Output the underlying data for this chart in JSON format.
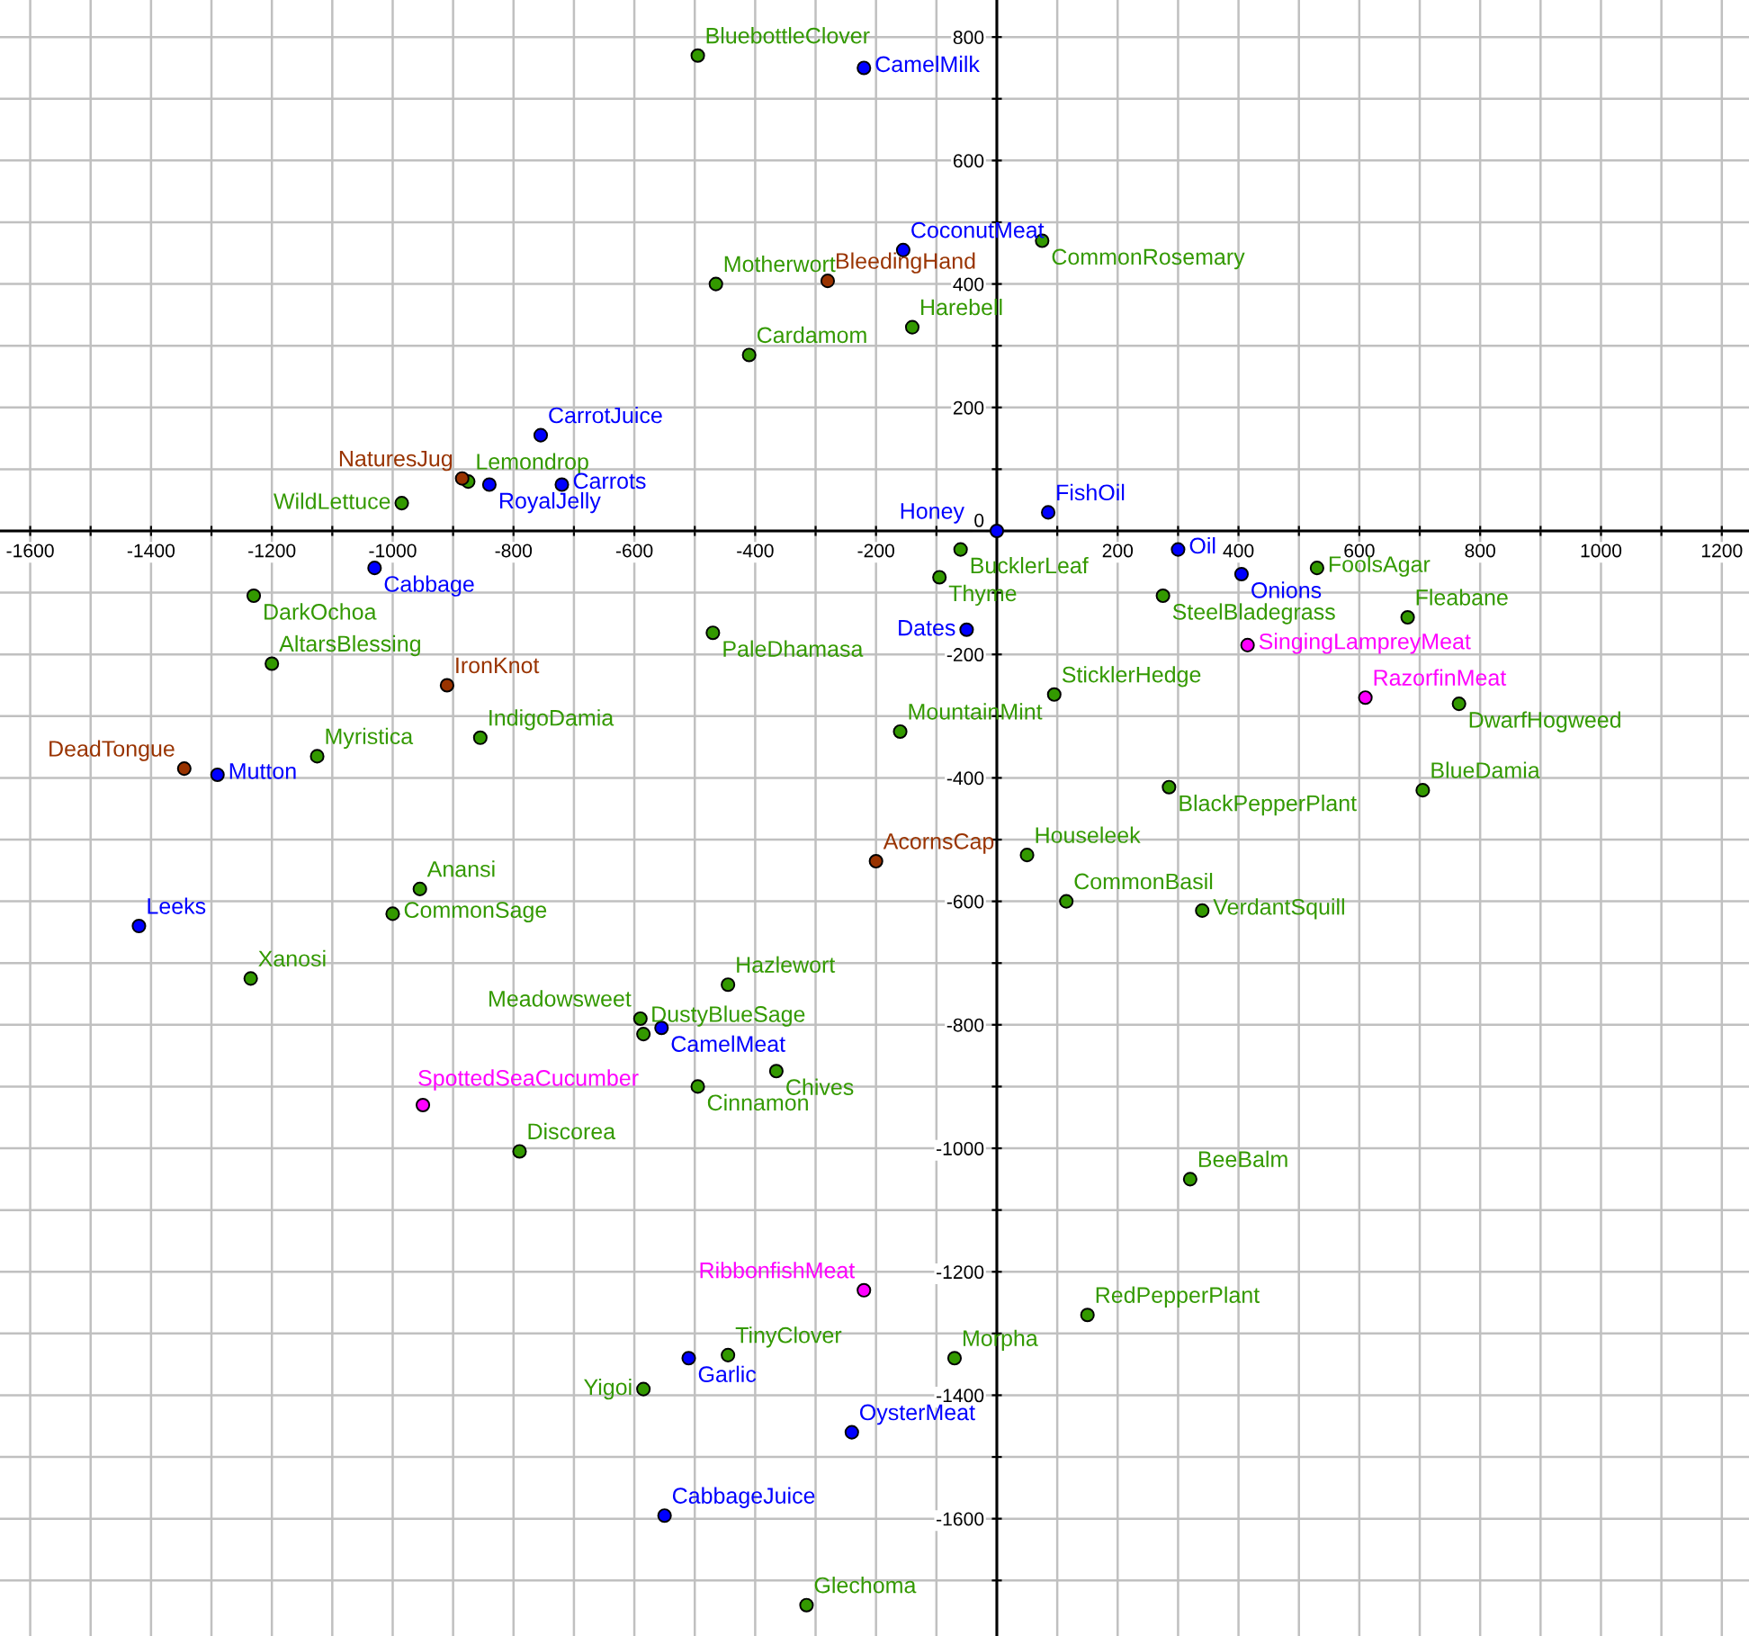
{
  "chart_data": {
    "type": "scatter",
    "marker": "circle",
    "grid": true,
    "xlim": [
      -1650,
      1245
    ],
    "ylim": [
      -1790,
      860
    ],
    "xticks": [
      -1600,
      {
        "value": -1500,
        "label": null
      },
      -1400,
      {
        "value": -1300,
        "label": null
      },
      -1200,
      {
        "value": -1100,
        "label": null
      },
      -1000,
      {
        "value": -900,
        "label": null
      },
      -800,
      {
        "value": -700,
        "label": null
      },
      -600,
      {
        "value": -500,
        "label": null
      },
      -400,
      {
        "value": -300,
        "label": null
      },
      -200,
      {
        "value": -100,
        "label": null
      },
      {
        "value": 0,
        "label": null
      },
      {
        "value": 100,
        "label": null
      },
      200,
      {
        "value": 300,
        "label": null
      },
      400,
      {
        "value": 500,
        "label": null
      },
      600,
      {
        "value": 700,
        "label": null
      },
      800,
      {
        "value": 900,
        "label": null
      },
      1000,
      {
        "value": 1100,
        "label": null
      },
      1200
    ],
    "yticks": [
      {
        "value": -1700,
        "label": null
      },
      -1600,
      {
        "value": -1500,
        "label": null
      },
      -1400,
      {
        "value": -1300,
        "label": null
      },
      -1200,
      {
        "value": -1100,
        "label": null
      },
      -1000,
      {
        "value": -900,
        "label": null
      },
      -800,
      {
        "value": -700,
        "label": null
      },
      -600,
      {
        "value": -500,
        "label": null
      },
      -400,
      {
        "value": -300,
        "label": null
      },
      -200,
      {
        "value": -100,
        "label": null
      },
      0,
      {
        "value": 100,
        "label": null
      },
      200,
      {
        "value": 300,
        "label": null
      },
      400,
      {
        "value": 500,
        "label": null
      },
      600,
      {
        "value": 700,
        "label": null
      },
      800
    ],
    "series": [
      {
        "color": "#339900",
        "x": [
          -495,
          75,
          -465,
          -140,
          -410,
          -875,
          -985,
          -60,
          -95,
          -470,
          95,
          -160,
          -1230,
          -1200,
          -855,
          -1125,
          530,
          275,
          680,
          765,
          285,
          705,
          -955,
          -1000,
          -1235,
          -790,
          -590,
          -585,
          -445,
          -365,
          -495,
          50,
          115,
          340,
          150,
          -445,
          -70,
          -585,
          -315,
          320
        ],
        "values": [
          770,
          470,
          400,
          330,
          285,
          80,
          45,
          -30,
          -75,
          -165,
          -265,
          -325,
          -105,
          -215,
          -335,
          -365,
          -60,
          -105,
          -140,
          -280,
          -415,
          -420,
          -580,
          -620,
          -725,
          -1005,
          -790,
          -815,
          -735,
          -875,
          -900,
          -525,
          -600,
          -615,
          -1270,
          -1335,
          -1340,
          -1390,
          -1740,
          -1050
        ]
      },
      {
        "color": "#0000ff",
        "x": [
          -220,
          -155,
          -755,
          -840,
          -720,
          85,
          0,
          -50,
          -1030,
          -1290,
          300,
          405,
          -1420,
          -555,
          -510,
          -240,
          -550
        ],
        "values": [
          750,
          455,
          155,
          75,
          75,
          30,
          0,
          -160,
          -60,
          -395,
          -30,
          -70,
          -640,
          -805,
          -1340,
          -1460,
          -1595
        ]
      },
      {
        "color": "#993300",
        "x": [
          -280,
          -885,
          -910,
          -1345,
          -200
        ],
        "values": [
          405,
          85,
          -250,
          -385,
          -535
        ]
      },
      {
        "color": "#ff00ff",
        "x": [
          415,
          610,
          -950,
          -220
        ],
        "values": [
          -185,
          -270,
          -930,
          -1230
        ]
      }
    ],
    "annotations": [
      {
        "text": "BluebottleClover",
        "x": -495,
        "y": 770
      },
      {
        "text": "CamelMilk",
        "x": -220,
        "y": 750
      },
      {
        "text": "CoconutMeat",
        "x": -155,
        "y": 455
      },
      {
        "text": "CommonRosemary",
        "x": 75,
        "y": 470
      },
      {
        "text": "Motherwort",
        "x": -465,
        "y": 400
      },
      {
        "text": "BleedingHand",
        "x": -280,
        "y": 405
      },
      {
        "text": "Harebell",
        "x": -140,
        "y": 330
      },
      {
        "text": "Cardamom",
        "x": -410,
        "y": 285
      },
      {
        "text": "CarrotJuice",
        "x": -755,
        "y": 155
      },
      {
        "text": "NaturesJug",
        "x": -885,
        "y": 85
      },
      {
        "text": "Lemondrop",
        "x": -875,
        "y": 80
      },
      {
        "text": "RoyalJelly",
        "x": -840,
        "y": 75
      },
      {
        "text": "Carrots",
        "x": -720,
        "y": 75
      },
      {
        "text": "WildLettuce",
        "x": -985,
        "y": 45
      },
      {
        "text": "FishOil",
        "x": 85,
        "y": 30
      },
      {
        "text": "Honey",
        "x": 0,
        "y": 0
      },
      {
        "text": "BucklerLeaf",
        "x": -60,
        "y": -30
      },
      {
        "text": "Thyme",
        "x": -95,
        "y": -75
      },
      {
        "text": "Dates",
        "x": -50,
        "y": -160
      },
      {
        "text": "PaleDhamasa",
        "x": -470,
        "y": -165
      },
      {
        "text": "SticklerHedge",
        "x": 95,
        "y": -265
      },
      {
        "text": "MountainMint",
        "x": -160,
        "y": -325
      },
      {
        "text": "Cabbage",
        "x": -1030,
        "y": -60
      },
      {
        "text": "DarkOchoa",
        "x": -1230,
        "y": -105
      },
      {
        "text": "AltarsBlessing",
        "x": -1200,
        "y": -215
      },
      {
        "text": "IronKnot",
        "x": -910,
        "y": -250
      },
      {
        "text": "IndigoDamia",
        "x": -855,
        "y": -335
      },
      {
        "text": "Myristica",
        "x": -1125,
        "y": -365
      },
      {
        "text": "DeadTongue",
        "x": -1345,
        "y": -385
      },
      {
        "text": "Mutton",
        "x": -1290,
        "y": -395
      },
      {
        "text": "Oil",
        "x": 300,
        "y": -30
      },
      {
        "text": "Onions",
        "x": 405,
        "y": -70
      },
      {
        "text": "FoolsAgar",
        "x": 530,
        "y": -60
      },
      {
        "text": "SteelBladegrass",
        "x": 275,
        "y": -105
      },
      {
        "text": "Fleabane",
        "x": 680,
        "y": -140
      },
      {
        "text": "SingingLampreyMeat",
        "x": 415,
        "y": -185
      },
      {
        "text": "RazorfinMeat",
        "x": 610,
        "y": -270
      },
      {
        "text": "DwarfHogweed",
        "x": 765,
        "y": -280
      },
      {
        "text": "BlackPepperPlant",
        "x": 285,
        "y": -415
      },
      {
        "text": "BlueDamia",
        "x": 705,
        "y": -420
      },
      {
        "text": "Anansi",
        "x": -955,
        "y": -580
      },
      {
        "text": "CommonSage",
        "x": -1000,
        "y": -620
      },
      {
        "text": "Leeks",
        "x": -1420,
        "y": -640
      },
      {
        "text": "Xanosi",
        "x": -1235,
        "y": -725
      },
      {
        "text": "SpottedSeaCucumber",
        "x": -950,
        "y": -930
      },
      {
        "text": "Discorea",
        "x": -790,
        "y": -1005
      },
      {
        "text": "Meadowsweet",
        "x": -590,
        "y": -790
      },
      {
        "text": "DustyBlueSage",
        "x": -585,
        "y": -815
      },
      {
        "text": "CamelMeat",
        "x": -555,
        "y": -805
      },
      {
        "text": "Hazlewort",
        "x": -445,
        "y": -735
      },
      {
        "text": "Chives",
        "x": -365,
        "y": -875
      },
      {
        "text": "Cinnamon",
        "x": -495,
        "y": -900
      },
      {
        "text": "AcornsCap",
        "x": -200,
        "y": -535
      },
      {
        "text": "Houseleek",
        "x": 50,
        "y": -525
      },
      {
        "text": "CommonBasil",
        "x": 115,
        "y": -600
      },
      {
        "text": "VerdantSquill",
        "x": 340,
        "y": -615
      },
      {
        "text": "RibbonfishMeat",
        "x": -220,
        "y": -1230
      },
      {
        "text": "RedPepperPlant",
        "x": 150,
        "y": -1270
      },
      {
        "text": "Garlic",
        "x": -510,
        "y": -1340
      },
      {
        "text": "TinyClover",
        "x": -445,
        "y": -1335
      },
      {
        "text": "Morpha",
        "x": -70,
        "y": -1340
      },
      {
        "text": "Yigoi",
        "x": -585,
        "y": -1390
      },
      {
        "text": "OysterMeat",
        "x": -240,
        "y": -1460
      },
      {
        "text": "CabbageJuice",
        "x": -550,
        "y": -1595
      },
      {
        "text": "Glechoma",
        "x": -315,
        "y": -1740
      },
      {
        "text": "BeeBalm",
        "x": 320,
        "y": -1050
      }
    ]
  }
}
